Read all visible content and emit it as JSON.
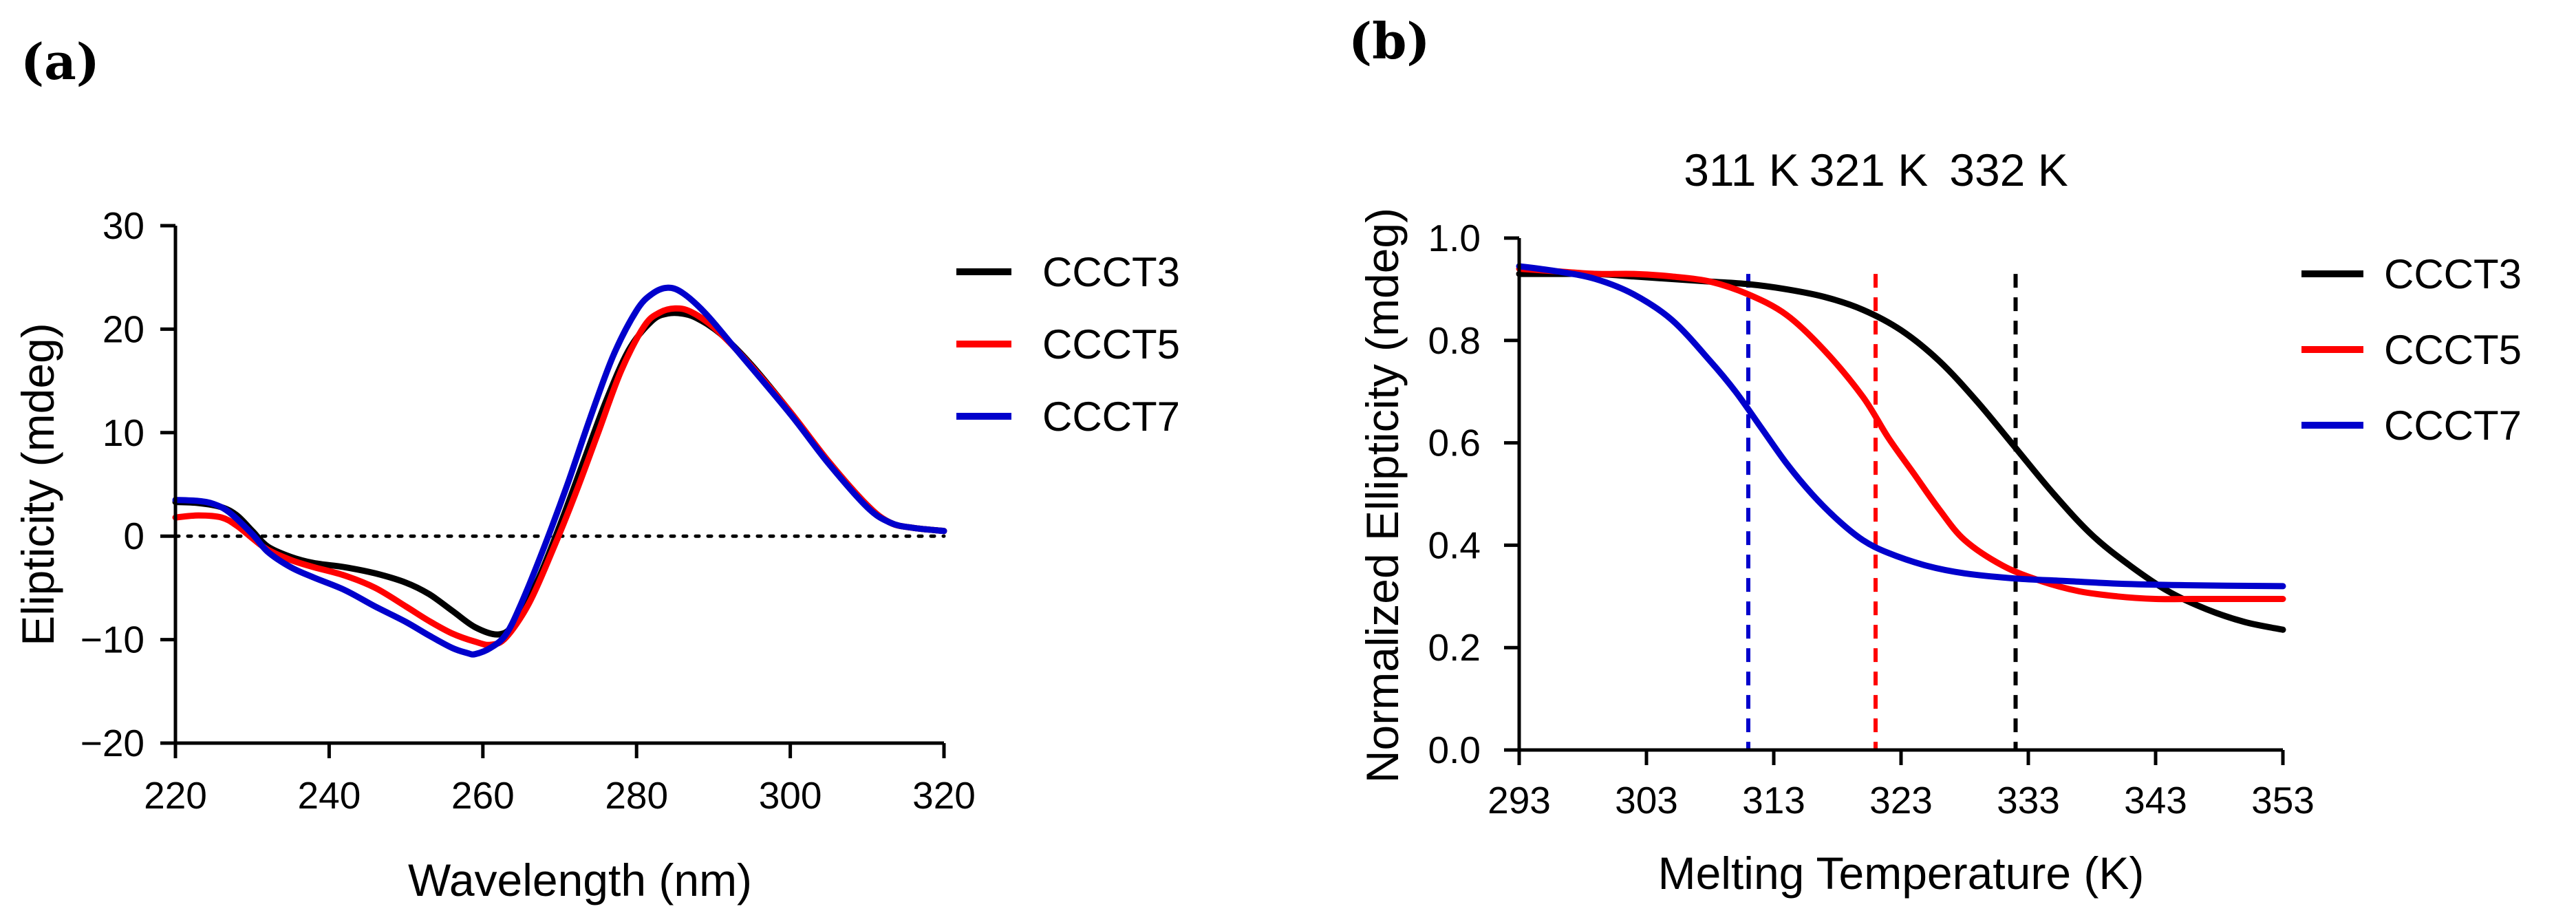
{
  "chart_data": [
    {
      "panel": "(a)",
      "type": "line",
      "xlabel": "Wavelength (nm)",
      "ylabel": "Elipticity (mdeg)",
      "xlim": [
        220,
        320
      ],
      "ylim": [
        -20,
        30
      ],
      "xticks": [
        220,
        240,
        260,
        280,
        300,
        320
      ],
      "yticks": [
        -20,
        -10,
        0,
        10,
        20,
        30
      ],
      "ytick_labels": [
        "−20",
        "−10",
        "0",
        "10",
        "20",
        "30"
      ],
      "zero_line": "dotted",
      "legend_position": "right",
      "series": [
        {
          "name": "CCCT3",
          "color": "#000000",
          "x": [
            220,
            223,
            226,
            228,
            230,
            232,
            235,
            238,
            242,
            246,
            250,
            253,
            256,
            259,
            262,
            264,
            267,
            270,
            273,
            276,
            279,
            282,
            284,
            286,
            288,
            291,
            295,
            300,
            305,
            310,
            313,
            316,
            320
          ],
          "y": [
            3.3,
            3.2,
            2.8,
            2.0,
            0.5,
            -1.0,
            -2.0,
            -2.6,
            -3.0,
            -3.6,
            -4.5,
            -5.6,
            -7.2,
            -8.8,
            -9.5,
            -8.5,
            -4.5,
            1.0,
            7.0,
            13.0,
            18.0,
            20.8,
            21.5,
            21.5,
            21.0,
            19.5,
            16.5,
            12.0,
            7.2,
            3.0,
            1.3,
            0.8,
            0.5
          ]
        },
        {
          "name": "CCCT5",
          "color": "#ff0000",
          "x": [
            220,
            223,
            226,
            228,
            230,
            232,
            235,
            238,
            242,
            246,
            250,
            253,
            256,
            259,
            261,
            263,
            266,
            269,
            272,
            275,
            278,
            281,
            283,
            285,
            287,
            290,
            294,
            300,
            305,
            310,
            313,
            316,
            320
          ],
          "y": [
            1.8,
            2.0,
            1.8,
            1.0,
            -0.2,
            -1.3,
            -2.3,
            -3.0,
            -3.8,
            -5.0,
            -6.8,
            -8.2,
            -9.4,
            -10.2,
            -10.5,
            -9.8,
            -6.5,
            -1.5,
            4.0,
            10.0,
            16.0,
            20.3,
            21.6,
            22.0,
            21.7,
            20.2,
            17.2,
            12.0,
            7.2,
            3.0,
            1.3,
            0.8,
            0.5
          ]
        },
        {
          "name": "CCCT7",
          "color": "#0000cc",
          "x": [
            220,
            223,
            225,
            227,
            230,
            232,
            235,
            238,
            242,
            246,
            250,
            253,
            256,
            258,
            259,
            261,
            263,
            265,
            268,
            271,
            274,
            277,
            280,
            282,
            284,
            286,
            289,
            293,
            300,
            305,
            310,
            313,
            316,
            320
          ],
          "y": [
            3.5,
            3.4,
            3.1,
            2.3,
            0.2,
            -1.5,
            -3.0,
            -4.0,
            -5.2,
            -6.8,
            -8.3,
            -9.6,
            -10.8,
            -11.3,
            -11.4,
            -10.8,
            -9.5,
            -6.5,
            -1.0,
            5.0,
            11.5,
            17.5,
            21.8,
            23.4,
            24.0,
            23.5,
            21.5,
            18.0,
            11.8,
            7.0,
            2.8,
            1.3,
            0.8,
            0.5
          ]
        }
      ]
    },
    {
      "panel": "(b)",
      "type": "line",
      "xlabel": "Melting Temperature (K)",
      "ylabel": "Normalized  Ellipticity (mdeg)",
      "xlim": [
        293,
        353
      ],
      "ylim": [
        0.0,
        1.0
      ],
      "xticks": [
        293,
        303,
        313,
        323,
        333,
        343,
        353
      ],
      "yticks": [
        0.0,
        0.2,
        0.4,
        0.6,
        0.8,
        1.0
      ],
      "ytick_labels": [
        "0.0",
        "0.2",
        "0.4",
        "0.6",
        "0.8",
        "1.0"
      ],
      "legend_position": "right",
      "series": [
        {
          "name": "CCCT3",
          "color": "#000000",
          "x": [
            293,
            296,
            299,
            302,
            305,
            308,
            311,
            314,
            317,
            320,
            323,
            326,
            329,
            332,
            335,
            338,
            341,
            344,
            347,
            350,
            353
          ],
          "y": [
            0.93,
            0.93,
            0.93,
            0.925,
            0.92,
            0.915,
            0.91,
            0.9,
            0.885,
            0.86,
            0.82,
            0.76,
            0.68,
            0.59,
            0.5,
            0.42,
            0.36,
            0.31,
            0.275,
            0.25,
            0.235
          ]
        },
        {
          "name": "CCCT5",
          "color": "#ff0000",
          "x": [
            293,
            296,
            299,
            302,
            305,
            308,
            311,
            314,
            317,
            320,
            322,
            324,
            326,
            328,
            331,
            334,
            337,
            340,
            343,
            346,
            349,
            353
          ],
          "y": [
            0.94,
            0.935,
            0.93,
            0.93,
            0.925,
            0.915,
            0.89,
            0.85,
            0.78,
            0.69,
            0.61,
            0.54,
            0.47,
            0.41,
            0.36,
            0.33,
            0.31,
            0.3,
            0.295,
            0.295,
            0.295,
            0.295
          ]
        },
        {
          "name": "CCCT7",
          "color": "#0000cc",
          "x": [
            293,
            296,
            299,
            302,
            305,
            308,
            310,
            312,
            314,
            316,
            318,
            320,
            322,
            325,
            328,
            332,
            336,
            340,
            345,
            353
          ],
          "y": [
            0.945,
            0.935,
            0.92,
            0.89,
            0.84,
            0.76,
            0.7,
            0.63,
            0.56,
            0.5,
            0.45,
            0.41,
            0.385,
            0.36,
            0.345,
            0.335,
            0.33,
            0.325,
            0.322,
            0.32
          ]
        }
      ],
      "annotations": [
        {
          "label": "311 K",
          "x": 311,
          "color": "#0000cc",
          "line": "dashed"
        },
        {
          "label": "321 K",
          "x": 321,
          "color": "#ff0000",
          "line": "dashed"
        },
        {
          "label": "332 K",
          "x": 332,
          "color": "#000000",
          "line": "dashed"
        }
      ]
    }
  ]
}
